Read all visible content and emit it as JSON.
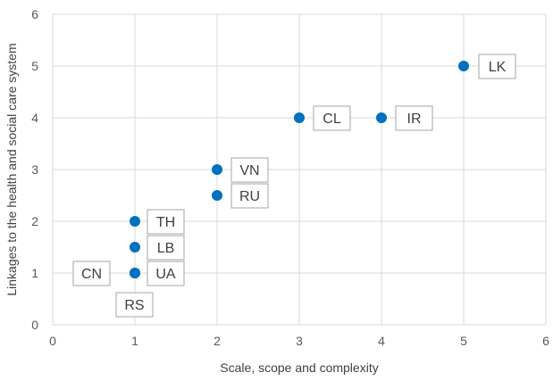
{
  "chart_data": {
    "type": "scatter",
    "title": "",
    "xlabel": "Scale, scope and complexity",
    "ylabel": "Linkages to the health and social care system",
    "xlim": [
      0,
      6
    ],
    "ylim": [
      0,
      6
    ],
    "xticks": [
      "0",
      "1",
      "2",
      "3",
      "4",
      "5",
      "6"
    ],
    "yticks": [
      "0",
      "1",
      "2",
      "3",
      "4",
      "5",
      "6"
    ],
    "grid": true,
    "marker_color": "#0070c0",
    "points": [
      {
        "label": "LK",
        "x": 5,
        "y": 5
      },
      {
        "label": "CL",
        "x": 3,
        "y": 4
      },
      {
        "label": "IR",
        "x": 4,
        "y": 4
      },
      {
        "label": "VN",
        "x": 2,
        "y": 3
      },
      {
        "label": "RU",
        "x": 2,
        "y": 2.5
      },
      {
        "label": "TH",
        "x": 1,
        "y": 2
      },
      {
        "label": "LB",
        "x": 1,
        "y": 1.5
      },
      {
        "label": "UA",
        "x": 1,
        "y": 1
      },
      {
        "label": "CN",
        "x": 1,
        "y": 1
      },
      {
        "label": "RS",
        "x": 1,
        "y": 1
      }
    ]
  }
}
